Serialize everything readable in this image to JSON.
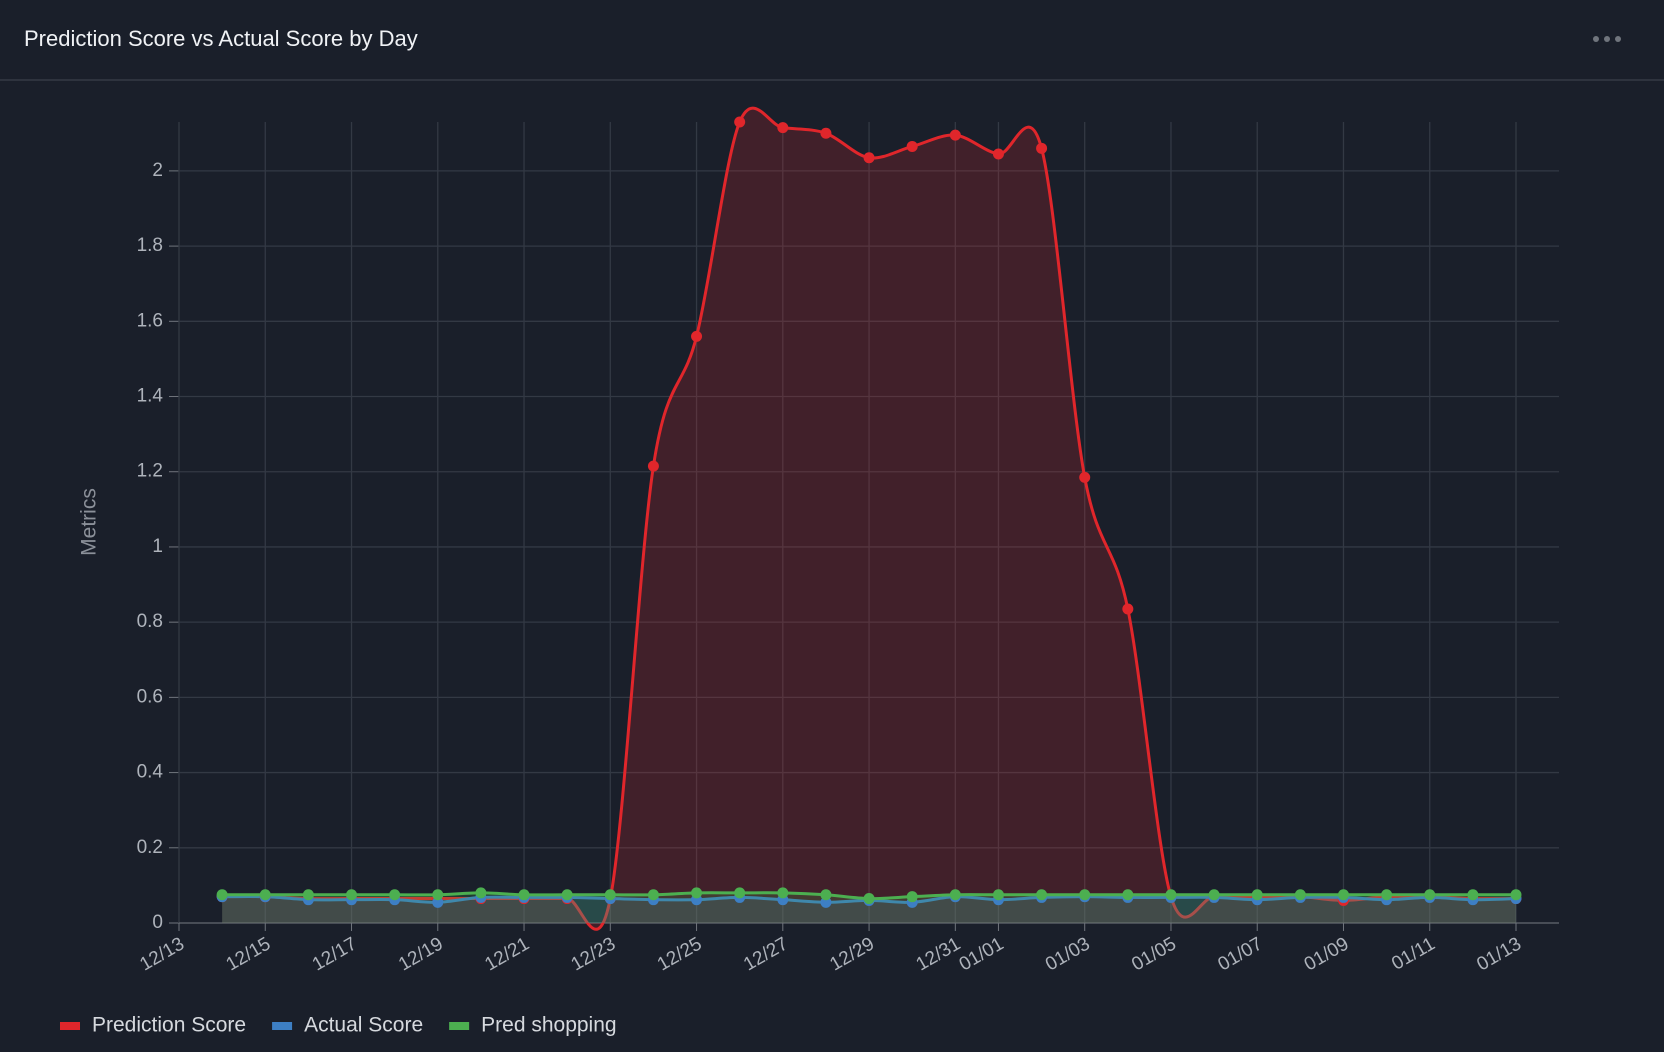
{
  "chart_data": {
    "type": "line",
    "title": "Prediction Score vs Actual Score by Day",
    "y_label": "Metrics",
    "x": [
      "12/14",
      "12/15",
      "12/16",
      "12/17",
      "12/18",
      "12/19",
      "12/20",
      "12/21",
      "12/22",
      "12/23",
      "12/24",
      "12/25",
      "12/26",
      "12/27",
      "12/28",
      "12/29",
      "12/30",
      "12/31",
      "01/01",
      "01/02",
      "01/03",
      "01/04",
      "01/05",
      "01/06",
      "01/07",
      "01/08",
      "01/09",
      "01/10",
      "01/11",
      "01/12",
      "01/13"
    ],
    "series": [
      {
        "name": "Prediction Score",
        "color": "#e0262b",
        "area": true,
        "values": [
          0.07,
          0.07,
          0.065,
          0.065,
          0.065,
          0.065,
          0.065,
          0.065,
          0.065,
          0.065,
          1.215,
          1.56,
          2.13,
          2.115,
          2.1,
          2.035,
          2.065,
          2.095,
          2.045,
          2.06,
          1.185,
          0.835,
          0.07,
          0.07,
          0.07,
          0.07,
          0.06,
          0.07,
          0.07,
          0.065,
          0.065
        ]
      },
      {
        "name": "Actual Score",
        "color": "#3d7fc4",
        "area": true,
        "values": [
          0.07,
          0.07,
          0.062,
          0.062,
          0.062,
          0.055,
          0.068,
          0.068,
          0.068,
          0.065,
          0.062,
          0.062,
          0.068,
          0.062,
          0.055,
          0.06,
          0.055,
          0.07,
          0.062,
          0.068,
          0.07,
          0.068,
          0.068,
          0.068,
          0.062,
          0.068,
          0.068,
          0.062,
          0.068,
          0.062,
          0.065
        ]
      },
      {
        "name": "Pred shopping",
        "color": "#4caf50",
        "area": true,
        "values": [
          0.075,
          0.075,
          0.075,
          0.075,
          0.075,
          0.075,
          0.08,
          0.075,
          0.075,
          0.075,
          0.075,
          0.08,
          0.08,
          0.08,
          0.075,
          0.065,
          0.07,
          0.075,
          0.075,
          0.075,
          0.075,
          0.075,
          0.075,
          0.075,
          0.075,
          0.075,
          0.075,
          0.075,
          0.075,
          0.075,
          0.075
        ]
      }
    ],
    "xlim": [
      "12/13",
      "01/13"
    ],
    "xticks": [
      "12/13",
      "12/15",
      "12/17",
      "12/19",
      "12/21",
      "12/23",
      "12/25",
      "12/27",
      "12/29",
      "12/31",
      "01/01",
      "01/03",
      "01/05",
      "01/07",
      "01/09",
      "01/11",
      "01/13"
    ],
    "ylim": [
      0,
      2.13
    ],
    "yticks": [
      0,
      0.2,
      0.4,
      0.6,
      0.8,
      1,
      1.2,
      1.4,
      1.6,
      1.8,
      2
    ],
    "grid": true,
    "legend": "bottom"
  }
}
